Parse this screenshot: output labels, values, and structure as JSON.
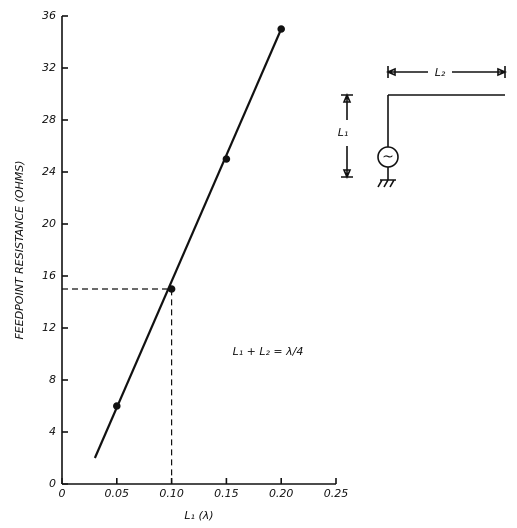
{
  "chart_data": {
    "type": "line",
    "x_label": "L₁ (λ)",
    "y_label": "FEEDPOINT RESISTANCE (OHMS)",
    "annotation": "L₁ + L₂ = λ/4",
    "xlim": [
      0,
      0.25
    ],
    "xticks": [
      0,
      0.05,
      {
        "value": 0.1,
        "label": "0.10"
      },
      0.15,
      {
        "value": 0.2,
        "label": "0.20"
      },
      0.25
    ],
    "ylim": [
      0,
      36
    ],
    "yticks": [
      0,
      4,
      8,
      12,
      16,
      20,
      24,
      28,
      32,
      36
    ],
    "color": "#111111",
    "line": {
      "x": [
        0.03,
        0.2
      ],
      "values": [
        2,
        35
      ]
    },
    "points": {
      "x": [
        0.05,
        0.1,
        0.15,
        0.2
      ],
      "values": [
        6,
        15,
        25,
        35
      ]
    },
    "guide": {
      "x": 0.1,
      "y": 15
    }
  },
  "inset": {
    "labels": [
      "L₂",
      "L₁",
      "~"
    ]
  }
}
